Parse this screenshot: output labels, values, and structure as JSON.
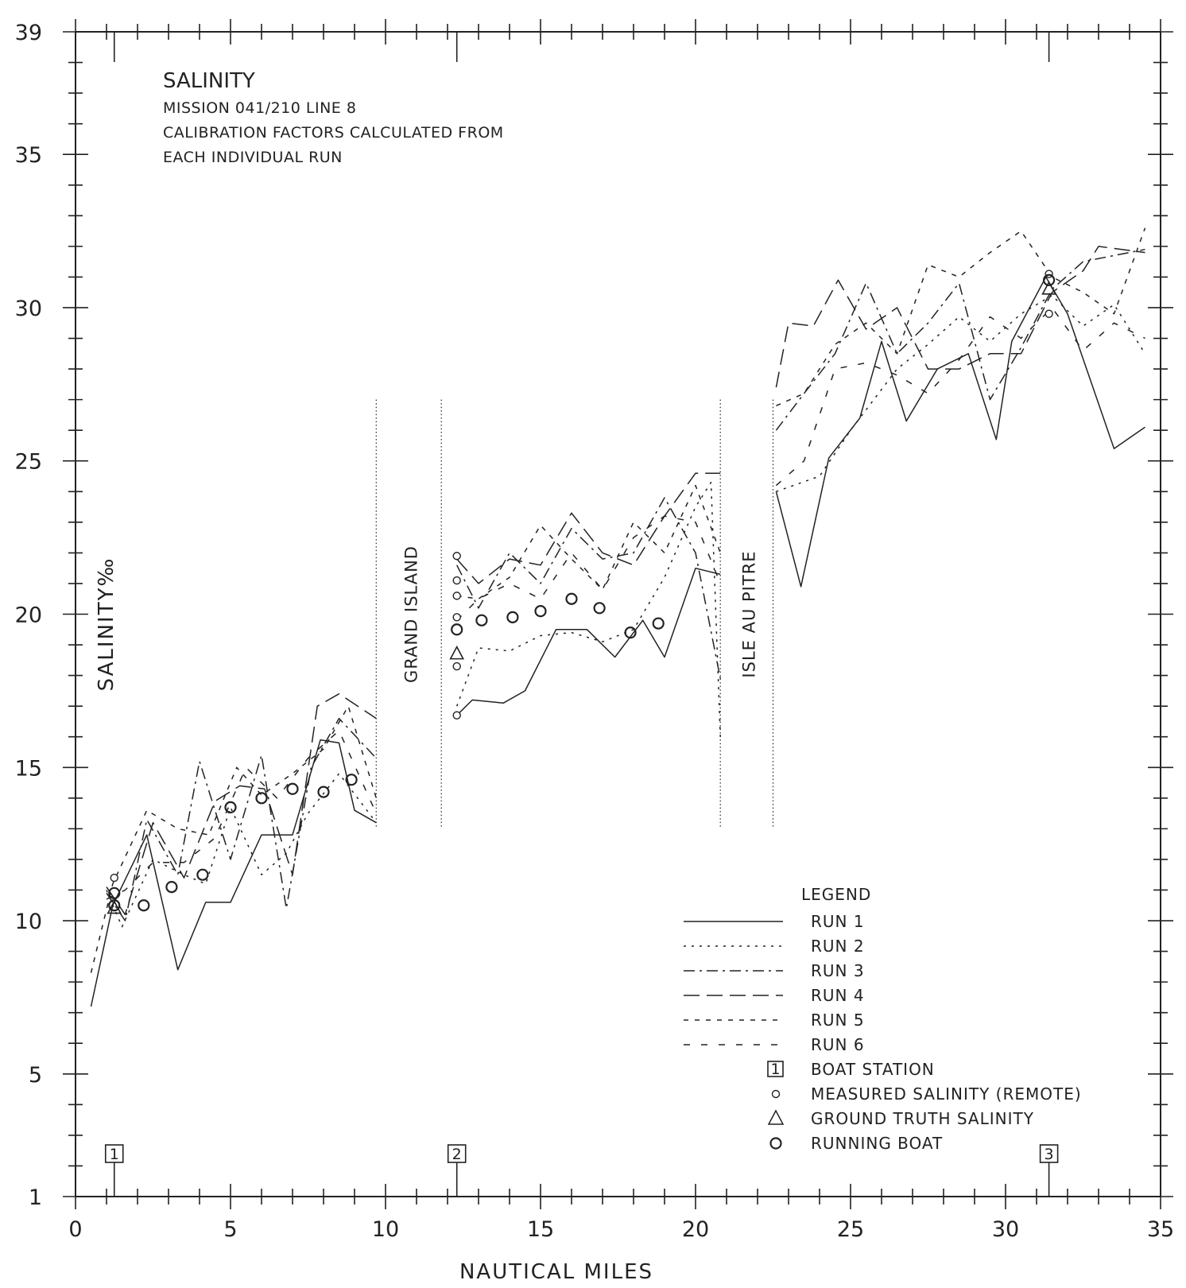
{
  "chart_data": {
    "type": "line",
    "title": "SALINITY",
    "subtitle_lines": [
      "MISSION 041/210 LINE 8",
      "CALIBRATION FACTORS CALCULATED FROM",
      "EACH INDIVIDUAL RUN"
    ],
    "xlabel": "NAUTICAL MILES",
    "ylabel": "SALINITY‰",
    "xlim": [
      0,
      35
    ],
    "ylim": [
      1,
      39
    ],
    "x_ticks": [
      0,
      5,
      10,
      15,
      20,
      25,
      30,
      35
    ],
    "y_ticks": [
      1,
      5,
      10,
      15,
      20,
      25,
      30,
      35,
      39
    ],
    "grid": false,
    "legend_position": "bottom-right",
    "legend_title": "LEGEND",
    "regions": [
      {
        "label": "GRAND ISLAND",
        "x_start": 9.7,
        "x_end": 11.8
      },
      {
        "label": "ISLE AU PITRE",
        "x_start": 20.8,
        "x_end": 22.5
      }
    ],
    "series": [
      {
        "name": "RUN 1",
        "dash": "",
        "segments": [
          [
            [
              0.5,
              7.2
            ],
            [
              1.2,
              10.5
            ],
            [
              2.3,
              12.8
            ],
            [
              3.3,
              8.4
            ],
            [
              4.2,
              10.6
            ],
            [
              5.0,
              10.6
            ],
            [
              6.0,
              12.8
            ],
            [
              7.0,
              12.8
            ],
            [
              7.9,
              15.9
            ],
            [
              8.5,
              15.8
            ],
            [
              9.0,
              13.6
            ],
            [
              9.7,
              13.2
            ]
          ],
          [
            [
              12.3,
              16.7
            ],
            [
              12.8,
              17.2
            ],
            [
              13.8,
              17.1
            ],
            [
              14.5,
              17.5
            ],
            [
              15.5,
              19.5
            ],
            [
              16.5,
              19.5
            ],
            [
              17.4,
              18.6
            ],
            [
              18.3,
              19.8
            ],
            [
              19.0,
              18.6
            ],
            [
              20.0,
              21.5
            ],
            [
              20.8,
              21.3
            ]
          ],
          [
            [
              22.6,
              24.0
            ],
            [
              23.4,
              20.9
            ],
            [
              24.3,
              25.1
            ],
            [
              25.3,
              26.4
            ],
            [
              26.0,
              28.9
            ],
            [
              26.8,
              26.3
            ],
            [
              27.8,
              28.0
            ],
            [
              28.8,
              28.5
            ],
            [
              29.7,
              25.7
            ],
            [
              30.2,
              28.9
            ],
            [
              31.3,
              31.0
            ],
            [
              32.0,
              29.8
            ],
            [
              33.5,
              25.4
            ],
            [
              34.5,
              26.1
            ]
          ]
        ]
      },
      {
        "name": "RUN 2",
        "dash": "3,7",
        "segments": [
          [
            [
              1.0,
              11.0
            ],
            [
              1.5,
              9.8
            ],
            [
              2.5,
              12.0
            ],
            [
              3.5,
              11.5
            ],
            [
              4.2,
              11.2
            ],
            [
              5.0,
              13.7
            ],
            [
              6.0,
              11.5
            ],
            [
              6.8,
              12.2
            ],
            [
              7.5,
              13.5
            ],
            [
              8.5,
              14.8
            ],
            [
              9.7,
              13.2
            ]
          ],
          [
            [
              12.3,
              17.0
            ],
            [
              13.0,
              18.9
            ],
            [
              14.0,
              18.8
            ],
            [
              15.0,
              19.3
            ],
            [
              16.0,
              19.4
            ],
            [
              17.0,
              19.1
            ],
            [
              18.0,
              19.5
            ],
            [
              19.0,
              21.2
            ],
            [
              20.0,
              23.5
            ],
            [
              20.5,
              24.3
            ],
            [
              20.8,
              16.0
            ]
          ],
          [
            [
              22.6,
              24.0
            ],
            [
              24.0,
              24.5
            ],
            [
              25.0,
              26.0
            ],
            [
              26.5,
              28.0
            ],
            [
              27.5,
              28.8
            ],
            [
              28.5,
              29.7
            ],
            [
              29.5,
              28.9
            ],
            [
              30.5,
              29.8
            ],
            [
              31.5,
              30.4
            ],
            [
              32.5,
              29.4
            ],
            [
              33.5,
              30.1
            ],
            [
              34.5,
              28.5
            ]
          ]
        ]
      },
      {
        "name": "RUN 3",
        "dash": "14,6,3,6",
        "segments": [
          [
            [
              1.0,
              10.9
            ],
            [
              1.6,
              10.0
            ],
            [
              2.3,
              13.3
            ],
            [
              3.3,
              11.5
            ],
            [
              4.0,
              15.2
            ],
            [
              5.0,
              12.0
            ],
            [
              6.0,
              15.4
            ],
            [
              6.8,
              10.4
            ],
            [
              7.6,
              15.0
            ],
            [
              8.5,
              16.6
            ],
            [
              9.7,
              15.3
            ]
          ],
          [
            [
              12.3,
              21.6
            ],
            [
              13.0,
              20.2
            ],
            [
              14.0,
              22.0
            ],
            [
              15.0,
              21.0
            ],
            [
              16.0,
              22.8
            ],
            [
              17.0,
              21.8
            ],
            [
              18.0,
              22.0
            ],
            [
              19.0,
              23.8
            ],
            [
              20.0,
              22.0
            ],
            [
              20.8,
              17.9
            ]
          ],
          [
            [
              22.6,
              26.0
            ],
            [
              23.5,
              27.2
            ],
            [
              24.5,
              28.5
            ],
            [
              25.5,
              30.8
            ],
            [
              26.5,
              28.5
            ],
            [
              27.5,
              29.5
            ],
            [
              28.5,
              30.8
            ],
            [
              29.5,
              27.0
            ],
            [
              30.5,
              28.7
            ],
            [
              31.5,
              30.6
            ],
            [
              32.5,
              31.5
            ],
            [
              34.5,
              31.9
            ]
          ]
        ]
      },
      {
        "name": "RUN 4",
        "dash": "20,9",
        "segments": [
          [
            [
              1.0,
              11.1
            ],
            [
              1.6,
              10.2
            ],
            [
              2.5,
              13.2
            ],
            [
              3.5,
              11.4
            ],
            [
              4.5,
              13.9
            ],
            [
              5.3,
              14.4
            ],
            [
              6.1,
              14.3
            ],
            [
              7.0,
              11.5
            ],
            [
              7.8,
              17.0
            ],
            [
              8.5,
              17.4
            ],
            [
              9.7,
              16.6
            ]
          ],
          [
            [
              12.3,
              21.8
            ],
            [
              13.0,
              21.0
            ],
            [
              14.0,
              21.8
            ],
            [
              15.0,
              21.6
            ],
            [
              16.0,
              23.3
            ],
            [
              17.0,
              22.0
            ],
            [
              18.0,
              21.6
            ],
            [
              19.0,
              23.2
            ],
            [
              20.0,
              24.6
            ],
            [
              20.8,
              24.6
            ]
          ],
          [
            [
              22.6,
              27.4
            ],
            [
              23.0,
              29.5
            ],
            [
              23.8,
              29.4
            ],
            [
              24.6,
              30.9
            ],
            [
              25.5,
              29.3
            ],
            [
              26.5,
              30.0
            ],
            [
              27.5,
              28.0
            ],
            [
              28.5,
              28.0
            ],
            [
              29.5,
              28.5
            ],
            [
              30.5,
              28.5
            ],
            [
              31.5,
              30.5
            ],
            [
              32.5,
              31.2
            ],
            [
              33.0,
              32.0
            ],
            [
              34.5,
              31.8
            ]
          ]
        ]
      },
      {
        "name": "RUN 5",
        "dash": "6,8",
        "segments": [
          [
            [
              0.5,
              8.3
            ],
            [
              1.2,
              11.2
            ],
            [
              2.3,
              13.6
            ],
            [
              3.3,
              13.0
            ],
            [
              4.3,
              12.8
            ],
            [
              5.2,
              15.0
            ],
            [
              6.0,
              14.1
            ],
            [
              7.0,
              14.8
            ],
            [
              8.0,
              15.6
            ],
            [
              8.8,
              17.0
            ],
            [
              9.7,
              14.0
            ]
          ],
          [
            [
              12.3,
              20.6
            ],
            [
              13.0,
              20.5
            ],
            [
              14.0,
              21.2
            ],
            [
              15.0,
              22.9
            ],
            [
              16.0,
              21.8
            ],
            [
              17.0,
              20.8
            ],
            [
              18.0,
              23.0
            ],
            [
              19.0,
              22.0
            ],
            [
              20.0,
              24.2
            ],
            [
              20.8,
              22.0
            ]
          ],
          [
            [
              22.6,
              26.8
            ],
            [
              23.5,
              27.2
            ],
            [
              24.5,
              28.8
            ],
            [
              25.5,
              29.5
            ],
            [
              26.5,
              28.5
            ],
            [
              27.5,
              31.4
            ],
            [
              28.5,
              31.0
            ],
            [
              29.5,
              31.8
            ],
            [
              30.5,
              32.5
            ],
            [
              31.5,
              31.0
            ],
            [
              32.5,
              30.5
            ],
            [
              33.5,
              29.8
            ],
            [
              34.5,
              32.6
            ]
          ]
        ]
      },
      {
        "name": "RUN 6",
        "dash": "8,14",
        "segments": [
          [
            [
              1.0,
              10.7
            ],
            [
              1.6,
              11.0
            ],
            [
              2.5,
              11.9
            ],
            [
              3.5,
              11.9
            ],
            [
              4.5,
              12.7
            ],
            [
              5.5,
              15.0
            ],
            [
              6.5,
              14.0
            ],
            [
              7.5,
              15.3
            ],
            [
              8.5,
              16.2
            ],
            [
              9.7,
              13.5
            ]
          ],
          [
            [
              12.3,
              19.8
            ],
            [
              13.0,
              20.5
            ],
            [
              14.0,
              21.0
            ],
            [
              15.0,
              20.5
            ],
            [
              16.0,
              22.0
            ],
            [
              17.0,
              20.8
            ],
            [
              18.0,
              22.5
            ],
            [
              19.0,
              23.2
            ],
            [
              20.0,
              23.0
            ],
            [
              20.8,
              21.0
            ]
          ],
          [
            [
              22.6,
              24.2
            ],
            [
              23.5,
              25.0
            ],
            [
              24.5,
              28.0
            ],
            [
              25.5,
              28.2
            ],
            [
              26.5,
              27.8
            ],
            [
              27.5,
              27.2
            ],
            [
              28.5,
              28.3
            ],
            [
              29.5,
              29.7
            ],
            [
              30.5,
              29.0
            ],
            [
              31.5,
              30.0
            ],
            [
              32.5,
              28.6
            ],
            [
              33.5,
              29.5
            ],
            [
              34.5,
              29.0
            ]
          ]
        ]
      }
    ],
    "measured_salinity_remote": [
      {
        "x": 1.25,
        "y": 11.4
      },
      {
        "x": 12.3,
        "y": 21.9
      },
      {
        "x": 12.3,
        "y": 21.1
      },
      {
        "x": 12.3,
        "y": 20.6
      },
      {
        "x": 12.3,
        "y": 19.9
      },
      {
        "x": 12.3,
        "y": 18.3
      },
      {
        "x": 12.3,
        "y": 16.7
      },
      {
        "x": 31.4,
        "y": 31.1
      },
      {
        "x": 31.4,
        "y": 29.8
      }
    ],
    "ground_truth_salinity": [
      {
        "x": 1.25,
        "y": 10.4
      },
      {
        "x": 12.3,
        "y": 18.7
      },
      {
        "x": 31.4,
        "y": 30.6
      }
    ],
    "running_boat": [
      {
        "x": 1.25,
        "y": 10.9
      },
      {
        "x": 1.25,
        "y": 10.5
      },
      {
        "x": 2.2,
        "y": 10.5
      },
      {
        "x": 3.1,
        "y": 11.1
      },
      {
        "x": 4.1,
        "y": 11.5
      },
      {
        "x": 5.0,
        "y": 13.7
      },
      {
        "x": 6.0,
        "y": 14.0
      },
      {
        "x": 7.0,
        "y": 14.3
      },
      {
        "x": 8.0,
        "y": 14.2
      },
      {
        "x": 8.9,
        "y": 14.6
      },
      {
        "x": 12.3,
        "y": 19.5
      },
      {
        "x": 13.1,
        "y": 19.8
      },
      {
        "x": 14.1,
        "y": 19.9
      },
      {
        "x": 15.0,
        "y": 20.1
      },
      {
        "x": 16.0,
        "y": 20.5
      },
      {
        "x": 16.9,
        "y": 20.2
      },
      {
        "x": 17.9,
        "y": 19.4
      },
      {
        "x": 18.8,
        "y": 19.7
      },
      {
        "x": 31.4,
        "y": 30.9
      }
    ],
    "boat_stations": [
      {
        "label": "1",
        "x": 1.25
      },
      {
        "label": "2",
        "x": 12.3
      },
      {
        "label": "3",
        "x": 31.4
      }
    ],
    "legend_symbol_entries": [
      "BOAT STATION",
      "MEASURED SALINITY (REMOTE)",
      "GROUND TRUTH SALINITY",
      "RUNNING BOAT"
    ],
    "legend_station_label": "1"
  }
}
